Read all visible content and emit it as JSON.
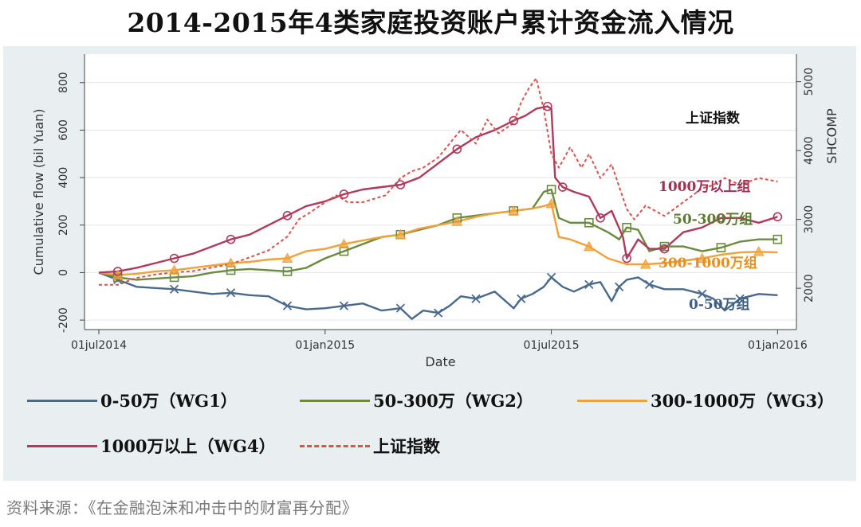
{
  "title": "2014-2015年4类家庭投资账户累计资金流入情况",
  "source": "资料来源：《在金融泡沫和冲击中的财富再分配》",
  "chart_data": {
    "type": "line",
    "xlabel": "Date",
    "ylabel": "Cumulative flow (bil Yuan)",
    "ylabel_right": "SHCOMP",
    "ylim": [
      -240,
      920
    ],
    "ylim_right": [
      1400,
      5400
    ],
    "xlim": [
      0,
      18.5
    ],
    "yticks": [
      "-200",
      "0",
      "200",
      "400",
      "600",
      "800"
    ],
    "yticks_right": [
      "2000",
      "3000",
      "4000",
      "5000"
    ],
    "xticks": [
      {
        "label": "01jul2014",
        "x": 0
      },
      {
        "label": "01jan2015",
        "x": 6
      },
      {
        "label": "01jul2015",
        "x": 12
      },
      {
        "label": "01jan2016",
        "x": 18
      }
    ],
    "series": [
      {
        "name": "0-50万（WG1）",
        "color": "#4a6a8c",
        "marker": "x",
        "axis": "left",
        "dash": false,
        "annotation": "0-50万组",
        "annotation_color": "#3f5f80",
        "x": [
          0,
          0.5,
          1,
          1.5,
          2,
          2.5,
          3,
          3.5,
          4,
          4.5,
          5,
          5.5,
          6,
          6.5,
          7,
          7.5,
          8,
          8.3,
          8.6,
          9,
          9.3,
          9.6,
          10,
          10.5,
          11,
          11.2,
          11.5,
          11.8,
          12,
          12.3,
          12.6,
          13,
          13.3,
          13.6,
          13.8,
          14,
          14.3,
          14.6,
          15,
          15.5,
          16,
          16.3,
          16.6,
          17,
          17.5,
          18
        ],
        "y": [
          0,
          -30,
          -60,
          -65,
          -70,
          -80,
          -90,
          -85,
          -95,
          -100,
          -140,
          -155,
          -150,
          -140,
          -130,
          -160,
          -150,
          -195,
          -160,
          -170,
          -140,
          -100,
          -110,
          -80,
          -150,
          -110,
          -90,
          -60,
          -20,
          -60,
          -80,
          -50,
          -40,
          -120,
          -60,
          -30,
          -20,
          -50,
          -70,
          -70,
          -90,
          -110,
          -160,
          -110,
          -90,
          -95
        ]
      },
      {
        "name": "50-300万（WG2）",
        "color": "#6a8a3e",
        "marker": "square",
        "axis": "left",
        "dash": false,
        "annotation": "50-300万组",
        "annotation_color": "#5d7a33",
        "x": [
          0,
          0.5,
          1,
          1.5,
          2,
          2.5,
          3,
          3.5,
          4,
          4.5,
          5,
          5.5,
          6,
          6.5,
          7,
          7.5,
          8,
          8.5,
          9,
          9.5,
          10,
          10.5,
          11,
          11.5,
          11.8,
          12,
          12.2,
          12.5,
          13,
          13.5,
          13.8,
          14,
          14.3,
          14.6,
          15,
          15.5,
          16,
          16.5,
          17,
          17.5,
          18
        ],
        "y": [
          0,
          -20,
          -30,
          -25,
          -20,
          -15,
          0,
          10,
          15,
          10,
          5,
          20,
          60,
          90,
          120,
          150,
          160,
          180,
          200,
          230,
          240,
          250,
          260,
          270,
          340,
          350,
          230,
          210,
          210,
          170,
          140,
          190,
          180,
          90,
          110,
          110,
          90,
          105,
          130,
          140,
          140
        ]
      },
      {
        "name": "300-1000万（WG3）",
        "color": "#f0a13a",
        "marker": "triangle",
        "axis": "left",
        "dash": false,
        "annotation": "300-1000万组",
        "annotation_color": "#e8901c",
        "x": [
          0,
          0.5,
          1,
          1.5,
          2,
          2.5,
          3,
          3.5,
          4,
          4.5,
          5,
          5.5,
          6,
          6.5,
          7,
          7.5,
          8,
          8.5,
          9,
          9.5,
          10,
          10.5,
          11,
          11.5,
          11.8,
          12,
          12.2,
          12.5,
          13,
          13.5,
          14,
          14.5,
          15,
          15.5,
          16,
          16.5,
          17,
          17.5,
          18
        ],
        "y": [
          0,
          -10,
          -5,
          5,
          10,
          20,
          30,
          40,
          45,
          55,
          60,
          90,
          100,
          120,
          135,
          150,
          160,
          185,
          200,
          215,
          235,
          250,
          260,
          270,
          280,
          290,
          150,
          140,
          110,
          60,
          35,
          35,
          40,
          50,
          60,
          75,
          85,
          88,
          85
        ]
      },
      {
        "name": "1000万以上（WG4）",
        "color": "#b0395c",
        "marker": "circle",
        "axis": "left",
        "dash": false,
        "annotation": "1000万以上组",
        "annotation_color": "#a52f52",
        "x": [
          0,
          0.5,
          1,
          1.5,
          2,
          2.5,
          3,
          3.5,
          4,
          4.5,
          5,
          5.5,
          6,
          6.5,
          7,
          7.5,
          8,
          8.5,
          9,
          9.5,
          10,
          10.5,
          11,
          11.3,
          11.6,
          11.9,
          12,
          12.1,
          12.3,
          12.6,
          13,
          13.3,
          13.6,
          13.9,
          14,
          14.3,
          14.6,
          15,
          15.5,
          16,
          16.5,
          17,
          17.5,
          18
        ],
        "y": [
          0,
          5,
          20,
          40,
          60,
          80,
          110,
          140,
          160,
          200,
          240,
          280,
          300,
          330,
          350,
          360,
          370,
          400,
          460,
          520,
          570,
          600,
          640,
          660,
          690,
          700,
          690,
          400,
          360,
          340,
          320,
          230,
          260,
          150,
          60,
          140,
          100,
          100,
          170,
          190,
          230,
          230,
          210,
          235
        ]
      },
      {
        "name": "上证指数",
        "color": "#d9534f",
        "marker": "none",
        "axis": "right",
        "dash": true,
        "annotation": "上证指数",
        "annotation_color": "#111111",
        "x": [
          0,
          0.5,
          1,
          1.5,
          2,
          2.5,
          3,
          3.5,
          4,
          4.5,
          5,
          5.3,
          5.6,
          6,
          6.3,
          6.6,
          7,
          7.3,
          7.6,
          8,
          8.3,
          8.6,
          9,
          9.3,
          9.6,
          10,
          10.3,
          10.6,
          11,
          11.2,
          11.4,
          11.6,
          11.8,
          12,
          12.2,
          12.5,
          12.8,
          13,
          13.3,
          13.6,
          14,
          14.2,
          14.5,
          15,
          15.5,
          16,
          16.3,
          16.6,
          17,
          17.5,
          18
        ],
        "y": [
          2050,
          2050,
          2150,
          2200,
          2230,
          2250,
          2300,
          2350,
          2450,
          2550,
          2750,
          3000,
          3100,
          3250,
          3350,
          3250,
          3250,
          3300,
          3350,
          3600,
          3700,
          3750,
          3900,
          4100,
          4300,
          4100,
          4450,
          4250,
          4400,
          4700,
          4900,
          5050,
          4600,
          3950,
          3750,
          4050,
          3750,
          3950,
          3600,
          3800,
          3150,
          3000,
          3200,
          3050,
          3250,
          3450,
          3500,
          3600,
          3500,
          3600,
          3550
        ]
      }
    ]
  },
  "legend": [
    {
      "label": "0-50万（WG1）",
      "color": "#4a6a8c",
      "dash": false
    },
    {
      "label": "50-300万（WG2）",
      "color": "#6a8a3e",
      "dash": false
    },
    {
      "label": "300-1000万（WG3）",
      "color": "#f0a13a",
      "dash": false
    },
    {
      "label": "1000万以上（WG4）",
      "color": "#b0395c",
      "dash": false
    },
    {
      "label": "上证指数",
      "color": "#d9534f",
      "dash": true
    }
  ]
}
